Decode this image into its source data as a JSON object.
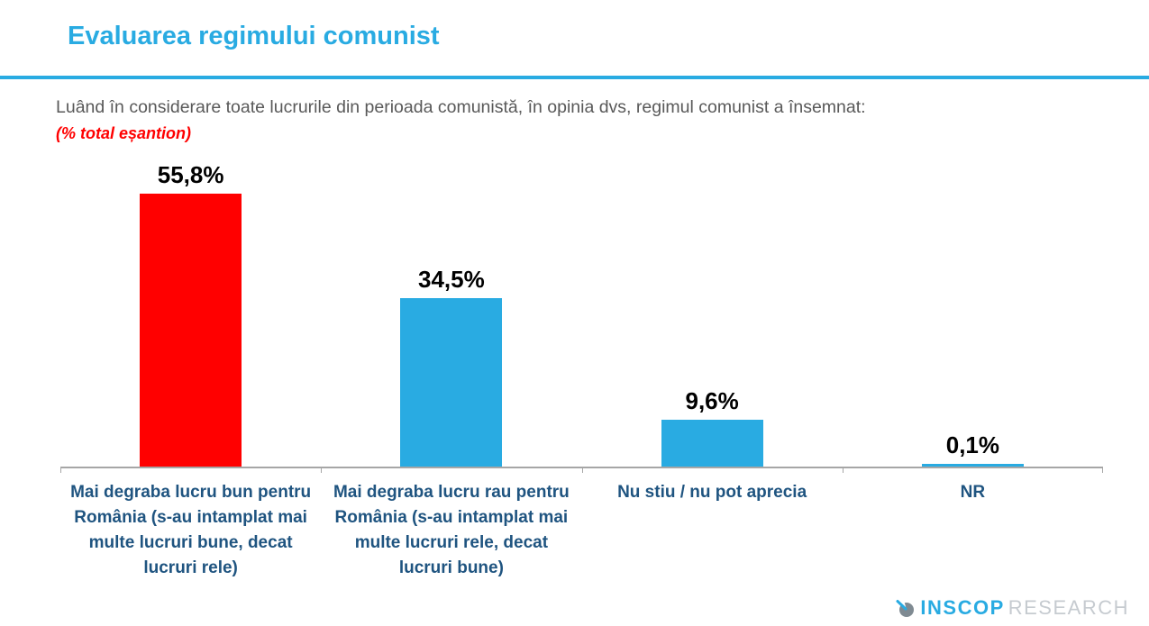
{
  "header": {
    "title": "Evaluarea regimului comunist"
  },
  "question": {
    "text": "Luând în considerare toate lucrurile din perioada comunistă, în opinia dvs, regimul comunist a însemnat:",
    "note": "(% total eșantion)"
  },
  "chart_data": {
    "type": "bar",
    "title": "Evaluarea regimului comunist",
    "categories": [
      "Mai degraba lucru bun pentru România (s-au intamplat mai multe lucruri bune, decat lucruri rele)",
      "Mai degraba lucru rau pentru România (s-au intamplat mai multe lucruri rele, decat lucruri bune)",
      "Nu stiu / nu pot aprecia",
      "NR"
    ],
    "values": [
      55.8,
      34.5,
      9.6,
      0.1
    ],
    "value_labels": [
      "55,8%",
      "34,5%",
      "9,6%",
      "0,1%"
    ],
    "bar_colors": [
      "#ff0000",
      "#29abe2",
      "#29abe2",
      "#29abe2"
    ],
    "xlabel": "",
    "ylabel": "",
    "ylim": [
      0,
      63
    ],
    "grid": false,
    "legend": false,
    "orientation": "vertical",
    "value_label_position": "above-bar"
  },
  "footer": {
    "logo_primary": "INSCOP",
    "logo_secondary": "RESEARCH"
  },
  "colors": {
    "accent_blue": "#29abe2",
    "bar_red": "#ff0000",
    "bar_blue": "#29abe2",
    "category_label_navy": "#1f5480",
    "question_gray": "#595959",
    "note_red": "#ff0000",
    "axis_gray": "#a6a6a6",
    "logo_gray": "#c6cbd0"
  }
}
